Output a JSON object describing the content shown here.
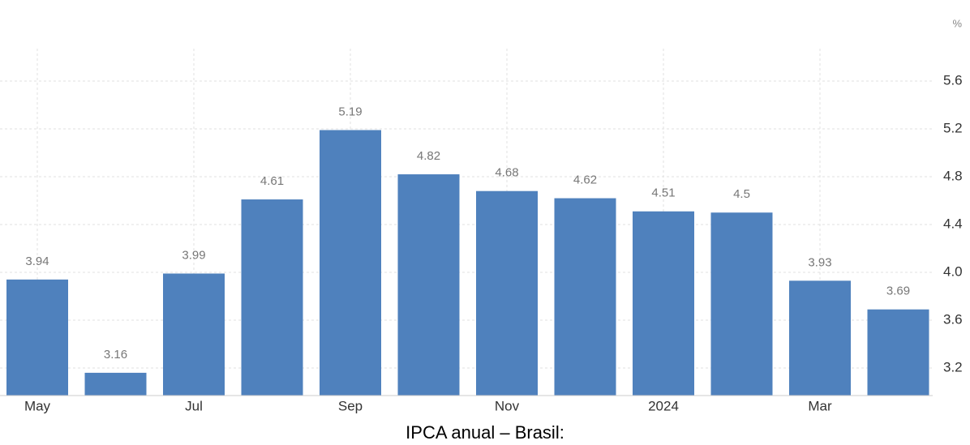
{
  "chart_data": {
    "type": "bar",
    "unit": "%",
    "caption": "IPCA anual – Brasil:",
    "categories": [
      "May",
      null,
      "Jul",
      null,
      "Sep",
      null,
      "Nov",
      null,
      "2024",
      null,
      "Mar",
      null
    ],
    "values": [
      3.94,
      3.16,
      3.99,
      4.61,
      5.19,
      4.82,
      4.68,
      4.62,
      4.51,
      4.5,
      3.93,
      3.69
    ],
    "color": "#4f81bd",
    "ylim": [
      3.0,
      5.8
    ],
    "yticks": [
      3.2,
      3.6,
      {
        "value": 4,
        "label": "4.0"
      },
      4.4,
      4.8,
      5.2,
      5.6
    ],
    "grid": true
  }
}
